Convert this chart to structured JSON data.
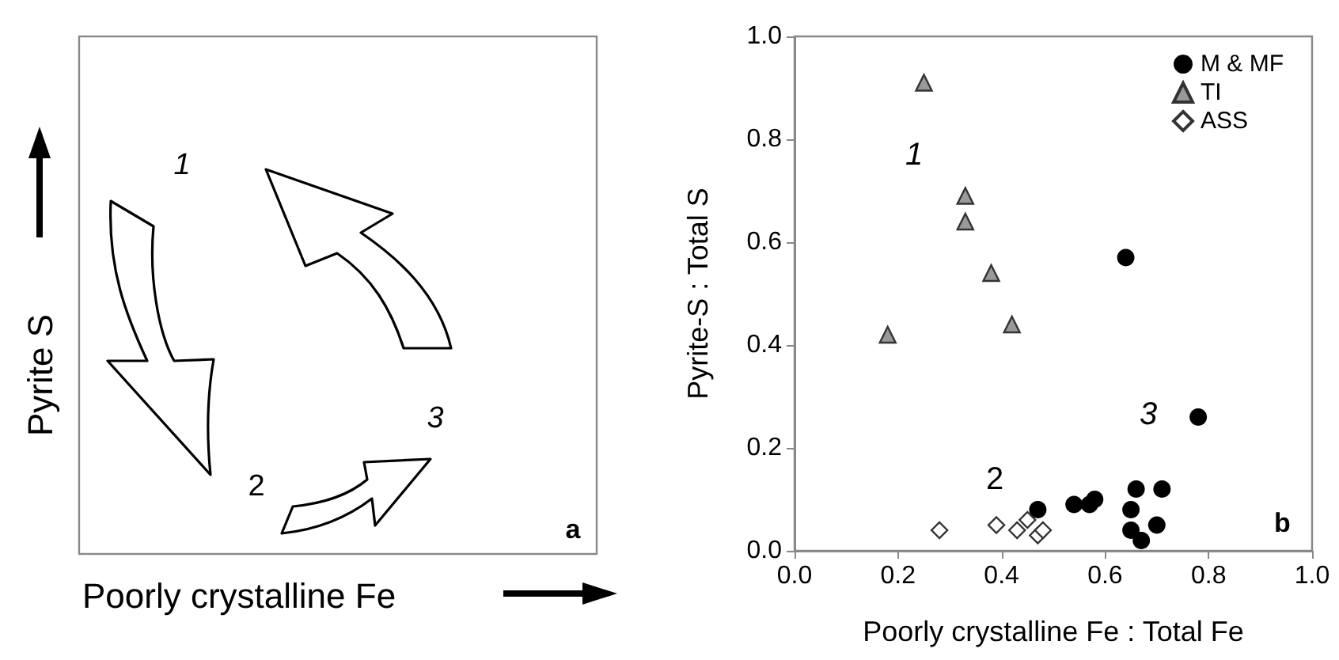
{
  "chart_data": [
    {
      "type": "other",
      "xlabel": "Poorly crystalline Fe",
      "ylabel": "Pyrite S",
      "annotations": [
        "1",
        "2",
        "3",
        "a"
      ]
    },
    {
      "type": "scatter",
      "xlabel": "Poorly crystalline Fe : Total Fe",
      "ylabel": "Pyrite-S : Total S",
      "xlim": [
        0,
        1
      ],
      "ylim": [
        0,
        1
      ],
      "xticks": [
        {
          "value": 0,
          "label": "0.0"
        },
        {
          "value": 0.2,
          "label": "0.2"
        },
        {
          "value": 0.4,
          "label": "0.4"
        },
        {
          "value": 0.6,
          "label": "0.6"
        },
        {
          "value": 0.8,
          "label": "0.8"
        },
        {
          "value": 1,
          "label": "1.0"
        }
      ],
      "yticks": [
        {
          "value": 0,
          "label": "0.0"
        },
        {
          "value": 0.2,
          "label": "0.2"
        },
        {
          "value": 0.4,
          "label": "0.4"
        },
        {
          "value": 0.6,
          "label": "0.6"
        },
        {
          "value": 0.8,
          "label": "0.8"
        },
        {
          "value": 1,
          "label": "1.0"
        }
      ],
      "grid": false,
      "legend": "top right",
      "series": [
        {
          "name": "M & MF",
          "color": "#000000",
          "marker": "circle",
          "x": [
            0.64,
            0.78,
            0.47,
            0.54,
            0.57,
            0.58,
            0.66,
            0.71,
            0.65,
            0.65,
            0.7,
            0.67
          ],
          "values": [
            0.57,
            0.26,
            0.08,
            0.09,
            0.09,
            0.1,
            0.12,
            0.12,
            0.08,
            0.04,
            0.05,
            0.02
          ]
        },
        {
          "name": "TI",
          "color": "#999999",
          "marker": "triangle",
          "x": [
            0.25,
            0.33,
            0.33,
            0.38,
            0.42,
            0.18
          ],
          "values": [
            0.91,
            0.69,
            0.64,
            0.54,
            0.44,
            0.42
          ]
        },
        {
          "name": "ASS",
          "color": "#ffffff",
          "marker": "diamond",
          "x": [
            0.28,
            0.39,
            0.43,
            0.45,
            0.47,
            0.48
          ],
          "values": [
            0.04,
            0.05,
            0.04,
            0.06,
            0.03,
            0.04
          ]
        }
      ],
      "annotations": [
        "1",
        "2",
        "3",
        "b"
      ]
    }
  ]
}
